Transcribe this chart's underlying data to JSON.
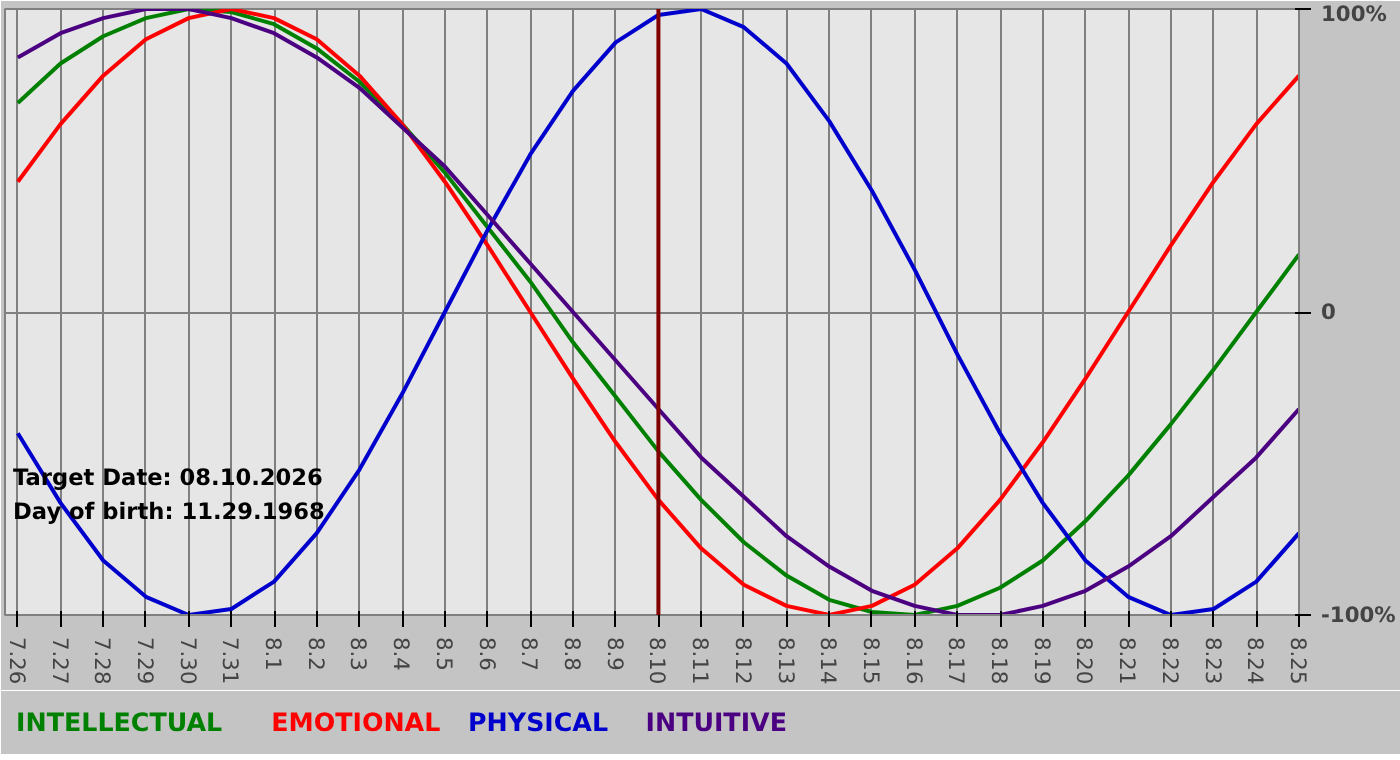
{
  "chart_data": {
    "type": "line",
    "categories": [
      "7.26",
      "7.27",
      "7.28",
      "7.29",
      "7.30",
      "7.31",
      "8.1",
      "8.2",
      "8.3",
      "8.4",
      "8.5",
      "8.6",
      "8.7",
      "8.8",
      "8.9",
      "8.10",
      "8.11",
      "8.12",
      "8.13",
      "8.14",
      "8.15",
      "8.16",
      "8.17",
      "8.18",
      "8.19",
      "8.20",
      "8.21",
      "8.22",
      "8.23",
      "8.24",
      "8.25"
    ],
    "series": [
      {
        "name": "INTELLECTUAL",
        "color": "#008000",
        "values": [
          69,
          82,
          91,
          97,
          100,
          99,
          95,
          87,
          76,
          62,
          46,
          28,
          10,
          -10,
          -28,
          -46,
          -62,
          -76,
          -87,
          -95,
          -99,
          -100,
          -97,
          -91,
          -82,
          -69,
          -54,
          -37,
          -19,
          0,
          19
        ]
      },
      {
        "name": "EMOTIONAL",
        "color": "#ff0000",
        "values": [
          43,
          62,
          78,
          90,
          97,
          100,
          97,
          90,
          78,
          62,
          43,
          22,
          0,
          -22,
          -43,
          -62,
          -78,
          -90,
          -97,
          -100,
          -97,
          -90,
          -78,
          -62,
          -43,
          -22,
          0,
          22,
          43,
          62,
          78
        ]
      },
      {
        "name": "PHYSICAL",
        "color": "#0000cc",
        "values": [
          -40,
          -63,
          -82,
          -94,
          -100,
          -98,
          -89,
          -73,
          -52,
          -27,
          0,
          27,
          52,
          73,
          89,
          98,
          100,
          94,
          82,
          63,
          40,
          14,
          -14,
          -40,
          -63,
          -82,
          -94,
          -100,
          -98,
          -89,
          -73
        ]
      },
      {
        "name": "INTUITIVE",
        "color": "#4b0082",
        "values": [
          84,
          92,
          97,
          100,
          100,
          97,
          92,
          84,
          74,
          61,
          48,
          32,
          16,
          0,
          -16,
          -32,
          -48,
          -61,
          -74,
          -84,
          -92,
          -97,
          -100,
          -100,
          -97,
          -92,
          -84,
          -74,
          -61,
          -48,
          -32
        ]
      }
    ],
    "ylim": [
      -100,
      100
    ],
    "yticks": [
      {
        "value": 100,
        "label": "100%"
      },
      0,
      {
        "value": -100,
        "label": "-100%"
      }
    ],
    "ref_lines": [
      {
        "axis": "x",
        "value": "8.10",
        "color": "#800000"
      }
    ],
    "annotations": [
      "Target Date: 08.10.2026",
      "Day of birth: 11.29.1968"
    ],
    "grid": true,
    "legend": "bottom",
    "marker": "none",
    "line_style": "solid"
  }
}
